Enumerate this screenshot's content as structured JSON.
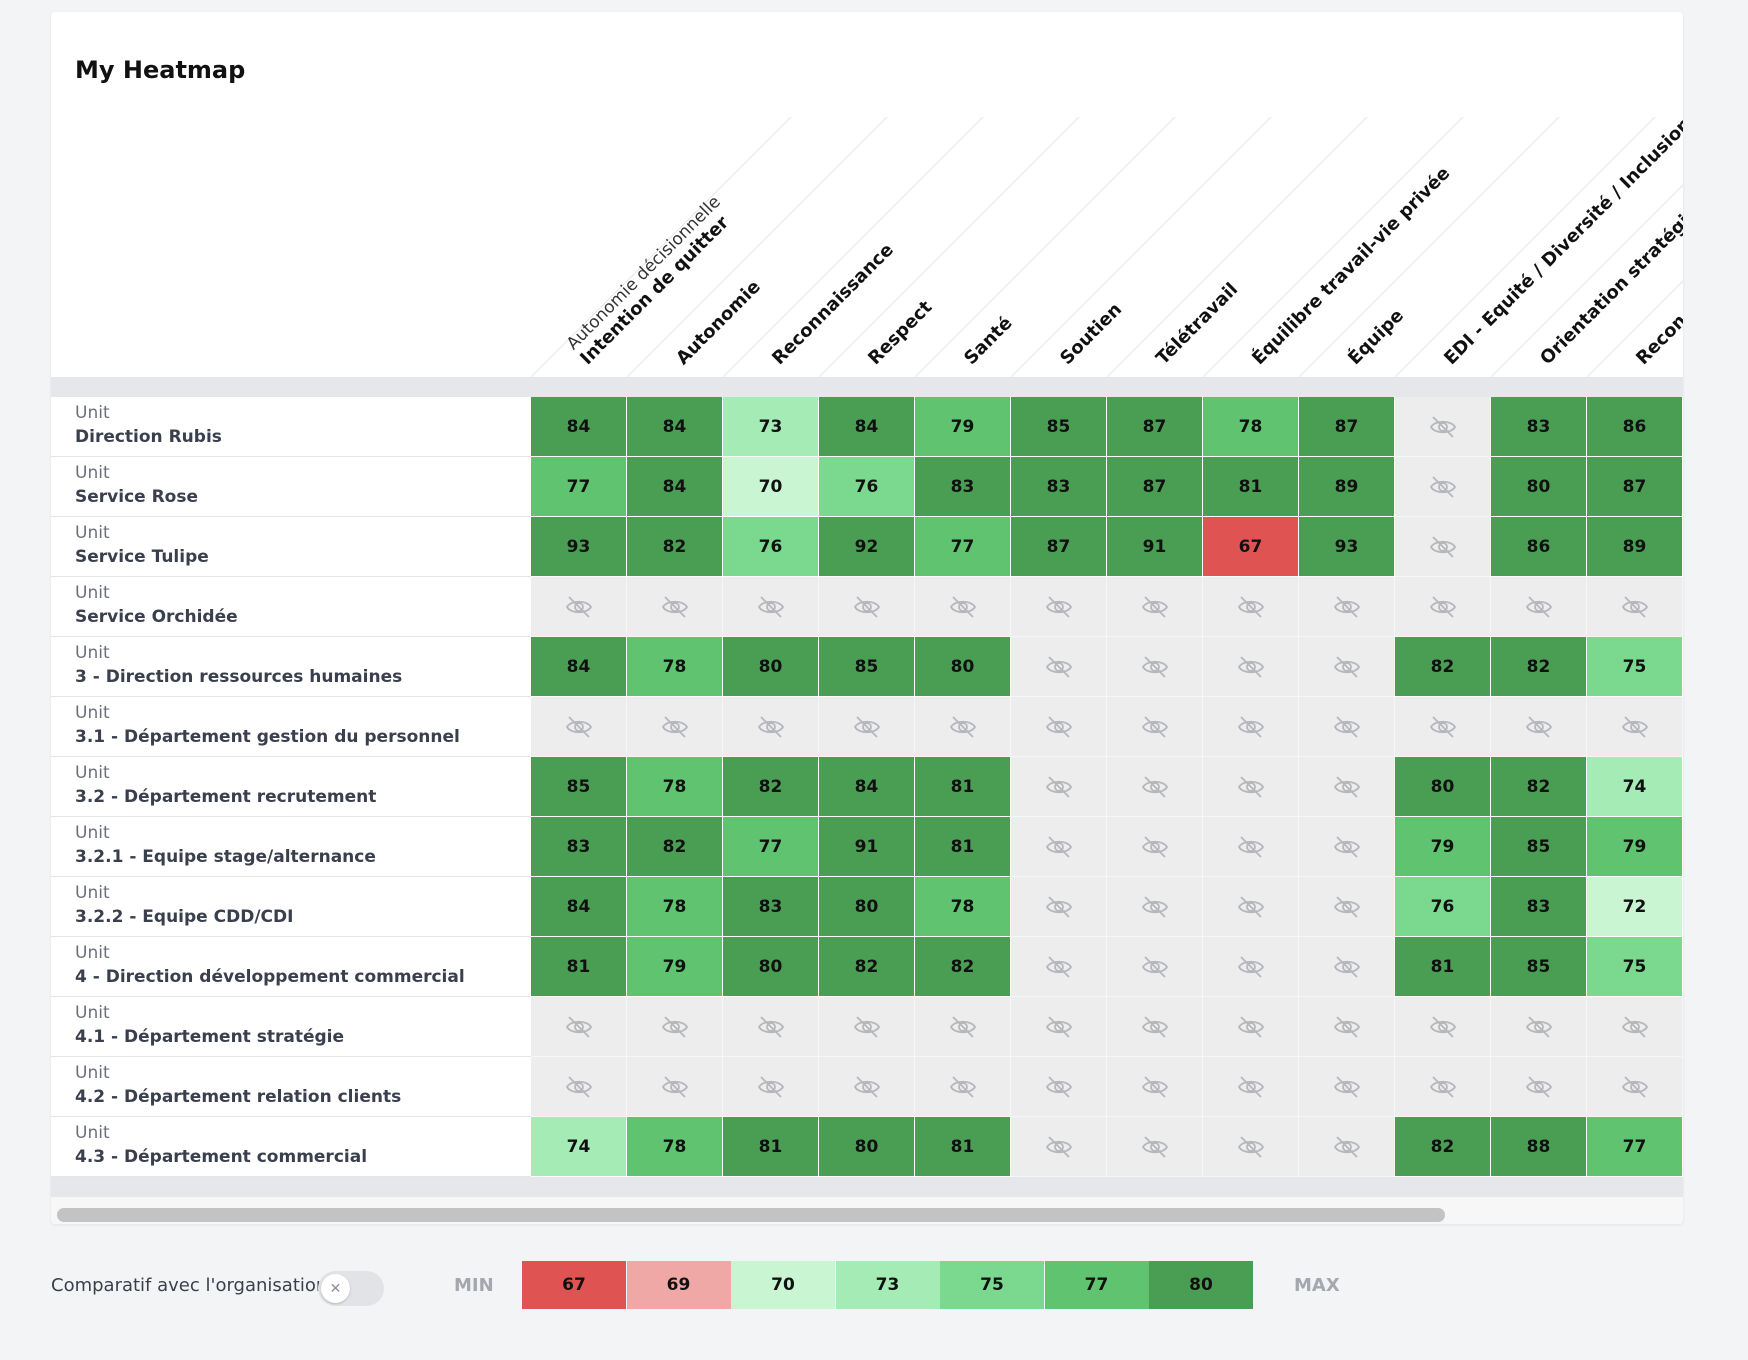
{
  "title": "My Heatmap",
  "column_subtitle": "Autonomie décisionnelle",
  "columns": [
    "Intention de quitter",
    "Autonomie",
    "Reconnaissance",
    "Respect",
    "Santé",
    "Soutien",
    "Télétravail",
    "Équilibre travail-vie privée",
    "Équipe",
    "EDI - Equité / Diversité / Inclusion",
    "Orientation stratégi",
    "Recon"
  ],
  "row_kind": "Unit",
  "rows": [
    {
      "name": "Direction Rubis",
      "values": [
        84,
        84,
        73,
        84,
        79,
        85,
        87,
        78,
        87,
        null,
        83,
        86
      ]
    },
    {
      "name": "Service Rose",
      "values": [
        77,
        84,
        70,
        76,
        83,
        83,
        87,
        81,
        89,
        null,
        80,
        87
      ]
    },
    {
      "name": "Service Tulipe",
      "values": [
        93,
        82,
        76,
        92,
        77,
        87,
        91,
        67,
        93,
        null,
        86,
        89
      ]
    },
    {
      "name": "Service Orchidée",
      "values": [
        null,
        null,
        null,
        null,
        null,
        null,
        null,
        null,
        null,
        null,
        null,
        null
      ]
    },
    {
      "name": "3 - Direction ressources humaines",
      "values": [
        84,
        78,
        80,
        85,
        80,
        null,
        null,
        null,
        null,
        82,
        82,
        75
      ]
    },
    {
      "name": "3.1 - Département gestion du personnel",
      "values": [
        null,
        null,
        null,
        null,
        null,
        null,
        null,
        null,
        null,
        null,
        null,
        null
      ]
    },
    {
      "name": "3.2 - Département recrutement",
      "values": [
        85,
        78,
        82,
        84,
        81,
        null,
        null,
        null,
        null,
        80,
        82,
        74
      ]
    },
    {
      "name": "3.2.1 - Equipe stage/alternance",
      "values": [
        83,
        82,
        77,
        91,
        81,
        null,
        null,
        null,
        null,
        79,
        85,
        79
      ]
    },
    {
      "name": "3.2.2 - Equipe CDD/CDI",
      "values": [
        84,
        78,
        83,
        80,
        78,
        null,
        null,
        null,
        null,
        76,
        83,
        72
      ]
    },
    {
      "name": "4 - Direction développement commercial",
      "values": [
        81,
        79,
        80,
        82,
        82,
        null,
        null,
        null,
        null,
        81,
        85,
        75
      ]
    },
    {
      "name": "4.1 - Département stratégie",
      "values": [
        null,
        null,
        null,
        null,
        null,
        null,
        null,
        null,
        null,
        null,
        null,
        null
      ]
    },
    {
      "name": "4.2 - Département relation clients",
      "values": [
        null,
        null,
        null,
        null,
        null,
        null,
        null,
        null,
        null,
        null,
        null,
        null
      ]
    },
    {
      "name": "4.3 - Département commercial",
      "values": [
        74,
        78,
        81,
        80,
        81,
        null,
        null,
        null,
        null,
        82,
        88,
        77
      ]
    }
  ],
  "hidden_cell_icon": "eye-off-icon",
  "legend": {
    "toggle_label": "Comparatif avec l'organisation",
    "toggle_state": "off",
    "toggle_icon": "close-icon",
    "min_label": "MIN",
    "max_label": "MAX",
    "thresholds": [
      {
        "value": 67,
        "color": "#e05353"
      },
      {
        "value": 69,
        "color": "#f0a8a6"
      },
      {
        "value": 70,
        "color": "#c9f5d3"
      },
      {
        "value": 73,
        "color": "#a4ebb6"
      },
      {
        "value": 75,
        "color": "#7bd98f"
      },
      {
        "value": 77,
        "color": "#5fc36f"
      },
      {
        "value": 80,
        "color": "#4a9e54"
      }
    ]
  }
}
